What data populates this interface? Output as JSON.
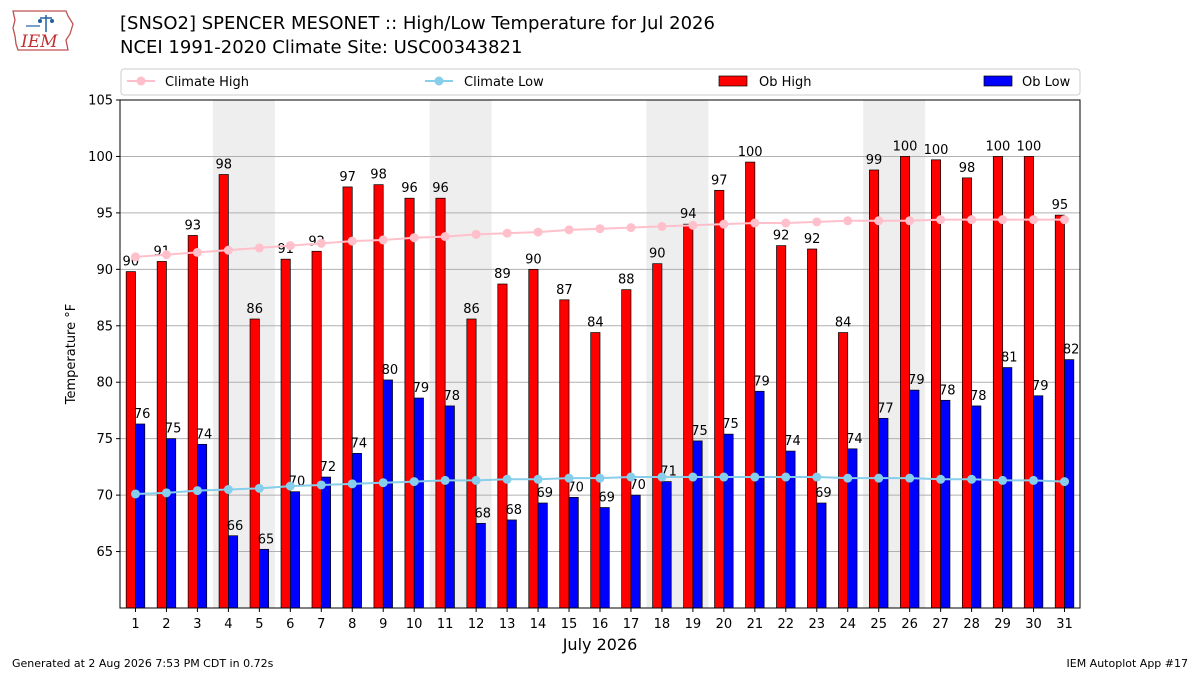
{
  "header": {
    "title_line1": "[SNSO2] SPENCER MESONET :: High/Low Temperature for Jul 2026",
    "title_line2": "NCEI 1991-2020 Climate Site: USC00343821"
  },
  "logo": {
    "text": "IEM"
  },
  "footer": {
    "generated": "Generated at 2 Aug 2026 7:53 PM CDT in 0.72s",
    "app": "IEM Autoplot App #17"
  },
  "colors": {
    "ob_high": "#ff0000",
    "ob_low": "#0000ff",
    "climate_high": "#ffc0cb",
    "climate_low": "#87ceeb",
    "weekend_shade": "#eeeeee",
    "grid": "#b0b0b0"
  },
  "chart_data": {
    "type": "bar",
    "title": "[SNSO2] SPENCER MESONET :: High/Low Temperature for Jul 2026",
    "subtitle": "NCEI 1991-2020 Climate Site: USC00343821",
    "xlabel": "July 2026",
    "ylabel": "Temperature °F",
    "ylim": [
      60,
      105
    ],
    "yticks": [
      65,
      70,
      75,
      80,
      85,
      90,
      95,
      100,
      105
    ],
    "grid": true,
    "legend_placement": "top",
    "legend": [
      "Climate High",
      "Climate Low",
      "Ob High",
      "Ob Low"
    ],
    "categories": [
      "1",
      "2",
      "3",
      "4",
      "5",
      "6",
      "7",
      "8",
      "9",
      "10",
      "11",
      "12",
      "13",
      "14",
      "15",
      "16",
      "17",
      "18",
      "19",
      "20",
      "21",
      "22",
      "23",
      "24",
      "25",
      "26",
      "27",
      "28",
      "29",
      "30",
      "31"
    ],
    "shaded_days": [
      [
        4,
        5
      ],
      [
        11,
        12
      ],
      [
        18,
        19
      ],
      [
        25,
        26
      ]
    ],
    "series": [
      {
        "name": "Ob High",
        "kind": "bar",
        "values": [
          89.8,
          90.7,
          93,
          98.4,
          85.6,
          90.9,
          91.6,
          97.3,
          97.5,
          96.3,
          96.3,
          85.6,
          88.7,
          90,
          87.3,
          84.4,
          88.2,
          90.5,
          94,
          97,
          99.5,
          92.1,
          91.8,
          84.4,
          98.8,
          100,
          99.7,
          98.1,
          100,
          100,
          94.8
        ],
        "labels": [
          "90",
          "91",
          "93",
          "98",
          "86",
          "91",
          "92",
          "97",
          "98",
          "96",
          "96",
          "86",
          "89",
          "90",
          "87",
          "84",
          "88",
          "90",
          "94",
          "97",
          "100",
          "92",
          "92",
          "84",
          "99",
          "100",
          "100",
          "98",
          "100",
          "100",
          "95"
        ]
      },
      {
        "name": "Ob Low",
        "kind": "bar",
        "values": [
          76.3,
          75,
          74.5,
          66.4,
          65.2,
          70.3,
          71.6,
          73.7,
          80.2,
          78.6,
          77.9,
          67.5,
          67.8,
          69.3,
          69.8,
          68.9,
          70,
          71.2,
          74.8,
          75.4,
          79.2,
          73.9,
          69.3,
          74.1,
          76.8,
          79.3,
          78.4,
          77.9,
          81.3,
          78.8,
          82
        ],
        "labels": [
          "76",
          "75",
          "74",
          "66",
          "65",
          "70",
          "72",
          "74",
          "80",
          "79",
          "78",
          "68",
          "68",
          "69",
          "70",
          "69",
          "70",
          "71",
          "75",
          "75",
          "79",
          "74",
          "69",
          "74",
          "77",
          "79",
          "78",
          "78",
          "81",
          "79",
          "82"
        ]
      },
      {
        "name": "Climate High",
        "kind": "line",
        "values": [
          91.1,
          91.3,
          91.5,
          91.7,
          91.9,
          92.1,
          92.3,
          92.5,
          92.6,
          92.8,
          92.9,
          93.1,
          93.2,
          93.3,
          93.5,
          93.6,
          93.7,
          93.8,
          93.9,
          94.0,
          94.1,
          94.1,
          94.2,
          94.3,
          94.3,
          94.3,
          94.4,
          94.4,
          94.4,
          94.4,
          94.4
        ]
      },
      {
        "name": "Climate Low",
        "kind": "line",
        "values": [
          70.1,
          70.2,
          70.4,
          70.5,
          70.6,
          70.8,
          70.9,
          71.0,
          71.1,
          71.2,
          71.3,
          71.3,
          71.4,
          71.4,
          71.5,
          71.5,
          71.6,
          71.6,
          71.6,
          71.6,
          71.6,
          71.6,
          71.6,
          71.5,
          71.5,
          71.5,
          71.4,
          71.4,
          71.3,
          71.3,
          71.2
        ]
      }
    ]
  }
}
